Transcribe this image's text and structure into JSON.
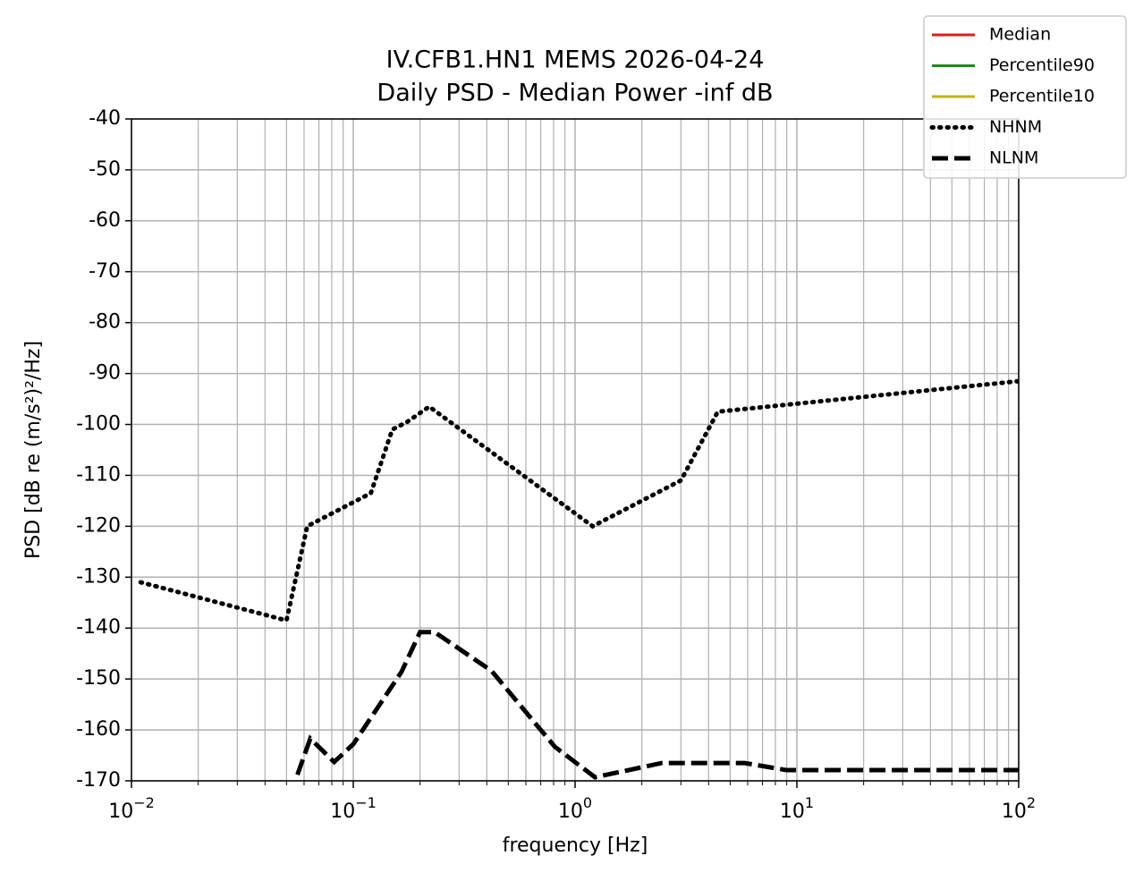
{
  "chart_data": {
    "type": "line",
    "title": "IV.CFB1.HN1 MEMS 2026-04-24",
    "subtitle": "Daily PSD - Median Power -inf dB",
    "x_label": "frequency [Hz]",
    "y_label": "PSD [dB re (m/s²)²/Hz]",
    "x_scale": "log",
    "grid": true,
    "minor_grid": true,
    "legend": "upper right",
    "xlim": [
      0.01,
      100
    ],
    "xticks": [
      {
        "value": 0.01,
        "label": "10",
        "exponent": "−2"
      },
      {
        "value": 0.1,
        "label": "10",
        "exponent": "−1"
      },
      {
        "value": 1,
        "label": "10",
        "exponent": "0"
      },
      {
        "value": 10,
        "label": "10",
        "exponent": "1"
      },
      {
        "value": 100,
        "label": "10",
        "exponent": "2"
      }
    ],
    "ylim": [
      -170,
      -40
    ],
    "yticks": [
      -170,
      -160,
      -150,
      -140,
      -130,
      -120,
      -110,
      -100,
      -90,
      -80,
      -70,
      -60,
      -50,
      -40
    ],
    "series": [
      {
        "name": "Median",
        "color": "#e41a1c",
        "linestyle": "solid",
        "x": [],
        "values": []
      },
      {
        "name": "Percentile90",
        "color": "#1a8a1a",
        "linestyle": "solid",
        "x": [],
        "values": []
      },
      {
        "name": "Percentile10",
        "color": "#c8b400",
        "linestyle": "solid",
        "x": [],
        "values": []
      },
      {
        "name": "NHNM",
        "color": "#000000",
        "linestyle": "dotted",
        "x": [
          0.011,
          0.05,
          0.062,
          0.12,
          0.15,
          0.175,
          0.22,
          1.2,
          3,
          4.4,
          100
        ],
        "values": [
          -131,
          -138.5,
          -120,
          -113.5,
          -101,
          -99.5,
          -96.5,
          -120,
          -111,
          -97.5,
          -91.5
        ]
      },
      {
        "name": "NLNM",
        "color": "#000000",
        "linestyle": "dashed",
        "x": [
          0.056,
          0.064,
          0.082,
          0.1,
          0.165,
          0.2,
          0.233,
          0.42,
          0.81,
          1.23,
          2.46,
          5.8,
          9,
          100
        ],
        "values": [
          -168.8,
          -161.7,
          -166.3,
          -162.8,
          -148.6,
          -140.8,
          -140.8,
          -148.4,
          -163.3,
          -169.3,
          -166.5,
          -166.5,
          -167.9,
          -167.9
        ]
      }
    ]
  }
}
